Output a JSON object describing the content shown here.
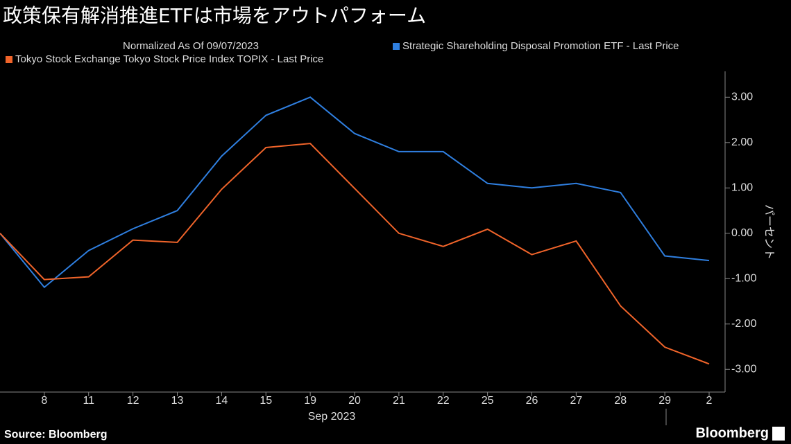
{
  "chart_data": {
    "type": "line",
    "title": "政策保有解消推進ETFは市場をアウトパフォーム",
    "subtitle": "Normalized As Of 09/07/2023",
    "x_label": "Sep 2023",
    "y_label": "パーセント",
    "source": "Source: Bloomberg",
    "brand": "Bloomberg",
    "categories": [
      null,
      "8",
      "11",
      "12",
      "13",
      "14",
      "15",
      "19",
      "20",
      "21",
      "22",
      "25",
      "26",
      "27",
      "28",
      "29",
      "2"
    ],
    "series": [
      {
        "name": "Strategic Shareholding Disposal Promotion ETF - Last Price",
        "color": "#2f7fe0",
        "values": [
          0,
          -1.19,
          -0.38,
          0.1,
          0.5,
          1.7,
          2.6,
          3.0,
          2.2,
          1.8,
          1.8,
          1.1,
          1.0,
          1.1,
          0.9,
          -0.5,
          -0.6
        ]
      },
      {
        "name": "Tokyo Stock Exchange Tokyo Stock Price Index TOPIX - Last Price",
        "color": "#f0642a",
        "values": [
          0,
          -1.02,
          -0.96,
          -0.15,
          -0.2,
          0.97,
          1.89,
          1.98,
          0.99,
          0,
          -0.29,
          0.09,
          -0.47,
          -0.17,
          -1.6,
          -2.51,
          -2.88
        ]
      }
    ],
    "ylim": [
      -3.5,
      3.57
    ],
    "yticks": [
      {
        "value": 3,
        "label": "3.00"
      },
      {
        "value": 2,
        "label": "2.00"
      },
      {
        "value": 1,
        "label": "1.00"
      },
      {
        "value": 0,
        "label": "0.00"
      },
      {
        "value": -1,
        "label": "-1.00"
      },
      {
        "value": -2,
        "label": "-2.00"
      },
      {
        "value": -3,
        "label": "-3.00"
      }
    ],
    "grid": false
  }
}
